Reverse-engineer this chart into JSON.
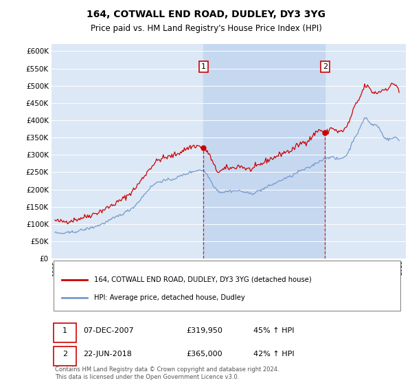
{
  "title": "164, COTWALL END ROAD, DUDLEY, DY3 3YG",
  "subtitle": "Price paid vs. HM Land Registry's House Price Index (HPI)",
  "title_fontsize": 10,
  "subtitle_fontsize": 8.5,
  "background_color": "#ffffff",
  "plot_bg_color": "#dce8f5",
  "highlight_bg_color": "#c5d8f0",
  "grid_color": "#ffffff",
  "red_color": "#cc0000",
  "blue_color": "#7799cc",
  "ylim": [
    0,
    620000
  ],
  "xlim": [
    1994.7,
    2025.5
  ],
  "yticks": [
    0,
    50000,
    100000,
    150000,
    200000,
    250000,
    300000,
    350000,
    400000,
    450000,
    500000,
    550000,
    600000
  ],
  "sale1_x": 2007.92,
  "sale1_y": 319950,
  "sale2_x": 2018.47,
  "sale2_y": 365000,
  "legend_entries": [
    "164, COTWALL END ROAD, DUDLEY, DY3 3YG (detached house)",
    "HPI: Average price, detached house, Dudley"
  ],
  "table_rows": [
    [
      "1",
      "07-DEC-2007",
      "£319,950",
      "45% ↑ HPI"
    ],
    [
      "2",
      "22-JUN-2018",
      "£365,000",
      "42% ↑ HPI"
    ]
  ],
  "footer": "Contains HM Land Registry data © Crown copyright and database right 2024.\nThis data is licensed under the Open Government Licence v3.0."
}
